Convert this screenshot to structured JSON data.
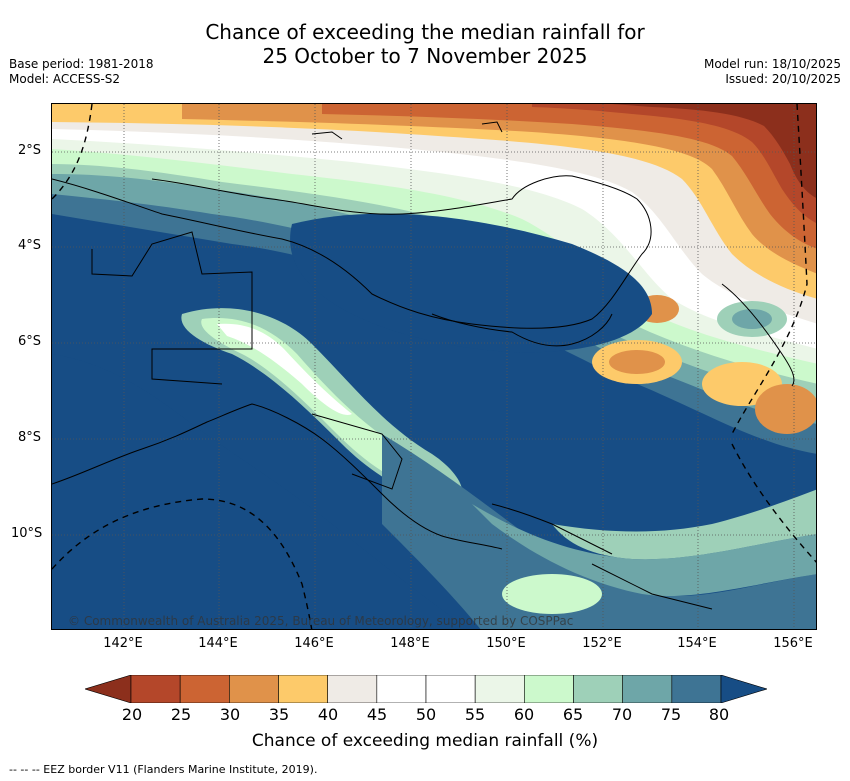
{
  "header": {
    "title_line1": "Chance of exceeding the median rainfall for",
    "title_line2": "25 October to 7 November 2025",
    "base_period": "Base period: 1981-2018",
    "model": "Model: ACCESS-S2",
    "model_run": "Model run: 18/10/2025",
    "issued": "Issued: 20/10/2025"
  },
  "map": {
    "lat_labels": [
      "2°S",
      "4°S",
      "6°S",
      "8°S",
      "10°S"
    ],
    "lon_labels": [
      "142°E",
      "144°E",
      "146°E",
      "148°E",
      "150°E",
      "152°E",
      "154°E",
      "156°E"
    ],
    "copyright": "© Commonwealth of Australia 2025, Bureau of Meteorology, supported by COSPPac",
    "land_outline_color": "#000000"
  },
  "colorbar": {
    "ticks": [
      "20",
      "25",
      "30",
      "35",
      "40",
      "45",
      "50",
      "55",
      "60",
      "65",
      "70",
      "75",
      "80"
    ],
    "colors": [
      "#8c2f1c",
      "#b4472a",
      "#cc6433",
      "#e0924a",
      "#fdca6a",
      "#efebe6",
      "#ffffff",
      "#ffffff",
      "#ebf6e8",
      "#ccf9cc",
      "#9ed0b8",
      "#6ea6a8",
      "#3e7494",
      "#174d85"
    ],
    "title": "Chance of exceeding median rainfall (%)"
  },
  "legend": {
    "eez_label": "-- -- -- EEZ border V11 (Flanders Marine Institute, 2019)."
  }
}
